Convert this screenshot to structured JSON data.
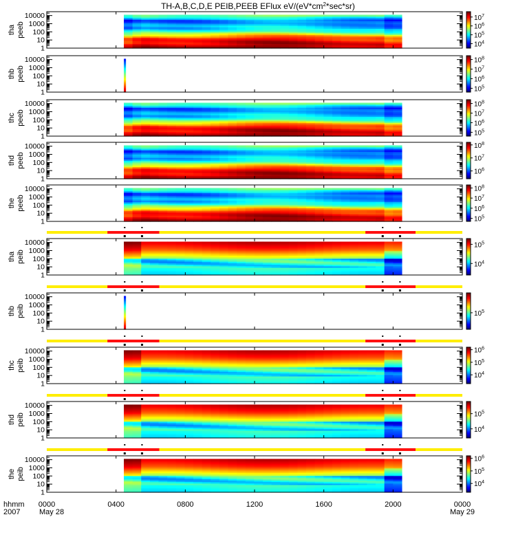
{
  "chart_data": {
    "type": "heatmap",
    "title": "TH-A,B,C,D,E PEIB,PEEB EFlux eV/(eV*cm",
    "title_sup": "2",
    "title_tail": "*sec*sr)",
    "x_range_hours": [
      0,
      24
    ],
    "x_ticks": [
      {
        "hour": 0,
        "label": "0000"
      },
      {
        "hour": 4,
        "label": "0400"
      },
      {
        "hour": 8,
        "label": "0800"
      },
      {
        "hour": 12,
        "label": "1200"
      },
      {
        "hour": 16,
        "label": "1600"
      },
      {
        "hour": 20,
        "label": "2000"
      },
      {
        "hour": 24,
        "label": "0000"
      }
    ],
    "x_footer": {
      "row1": "hhmm",
      "row2": "2007",
      "date_start": "May 28",
      "date_end": "May 29"
    },
    "ylim_eV": [
      1,
      30000
    ],
    "y_ticks": [
      "10000",
      "1000",
      "100",
      "10",
      "1"
    ],
    "panels": [
      {
        "label1": "tha",
        "label2": "peeb",
        "kind": "electron",
        "t_start": 4.45,
        "t_end": 20.5,
        "scale": [
          "7",
          "6",
          "5",
          "4"
        ],
        "scale_lo": 3.5,
        "scale_hi": 7.6
      },
      {
        "label1": "thb",
        "label2": "peeb",
        "kind": "spike",
        "t_start": 4.45,
        "t_end": 4.55,
        "scale": [
          "8",
          "7",
          "6",
          "5"
        ],
        "scale_lo": 4.6,
        "scale_hi": 8.4
      },
      {
        "label1": "thc",
        "label2": "peeb",
        "kind": "electron",
        "t_start": 4.45,
        "t_end": 20.5,
        "scale": [
          "8",
          "7",
          "6",
          "5"
        ],
        "scale_lo": 4.6,
        "scale_hi": 8.4
      },
      {
        "label1": "thd",
        "label2": "peeb",
        "kind": "electron",
        "t_start": 4.45,
        "t_end": 20.5,
        "scale": [
          "8",
          "7",
          "6"
        ],
        "scale_lo": 5.4,
        "scale_hi": 8.2
      },
      {
        "label1": "the",
        "label2": "peeb",
        "kind": "electron",
        "t_start": 4.45,
        "t_end": 20.5,
        "scale": [
          "8",
          "7",
          "6",
          "5"
        ],
        "scale_lo": 4.7,
        "scale_hi": 8.3
      },
      {
        "label1": "tha",
        "label2": "peib",
        "kind": "ion",
        "t_start": 4.45,
        "t_end": 20.5,
        "scale": [
          "5",
          "4"
        ],
        "scale_lo": 3.4,
        "scale_hi": 5.3
      },
      {
        "label1": "thb",
        "label2": "peib",
        "kind": "spike",
        "t_start": 4.45,
        "t_end": 4.55,
        "scale": [
          "5"
        ],
        "scale_lo": 4.5,
        "scale_hi": 5.6
      },
      {
        "label1": "thc",
        "label2": "peib",
        "kind": "ion",
        "t_start": 4.45,
        "t_end": 20.5,
        "scale": [
          "6",
          "5",
          "4"
        ],
        "scale_lo": 3.3,
        "scale_hi": 6.2
      },
      {
        "label1": "thd",
        "label2": "peib",
        "kind": "ion",
        "t_start": 4.45,
        "t_end": 20.5,
        "scale": [
          "5",
          "4"
        ],
        "scale_lo": 3.4,
        "scale_hi": 5.8
      },
      {
        "label1": "the",
        "label2": "peib",
        "kind": "ion",
        "t_start": 4.45,
        "t_end": 20.5,
        "scale": [
          "6",
          "5",
          "4"
        ],
        "scale_lo": 3.3,
        "scale_hi": 6.2
      }
    ],
    "mode_bars": [
      {
        "segments": [
          {
            "from": 0,
            "to": 3.5,
            "mode": "slow"
          },
          {
            "from": 3.5,
            "to": 6.5,
            "mode": "fast"
          },
          {
            "from": 6.5,
            "to": 18.4,
            "mode": "slow"
          },
          {
            "from": 18.4,
            "to": 21.3,
            "mode": "fast"
          },
          {
            "from": 21.3,
            "to": 24,
            "mode": "slow"
          }
        ],
        "marks": [
          4.5,
          5.5,
          19.4,
          20.4
        ]
      },
      {
        "segments": [
          {
            "from": 0,
            "to": 3.5,
            "mode": "slow"
          },
          {
            "from": 3.5,
            "to": 6.5,
            "mode": "fast"
          },
          {
            "from": 6.5,
            "to": 18.4,
            "mode": "slow"
          },
          {
            "from": 18.4,
            "to": 21.3,
            "mode": "fast"
          },
          {
            "from": 21.3,
            "to": 24,
            "mode": "slow"
          }
        ],
        "marks": [
          4.5,
          5.5,
          19.4,
          20.4
        ]
      },
      {
        "segments": [
          {
            "from": 0,
            "to": 3.5,
            "mode": "slow"
          },
          {
            "from": 3.5,
            "to": 6.5,
            "mode": "fast"
          },
          {
            "from": 6.5,
            "to": 18.4,
            "mode": "slow"
          },
          {
            "from": 18.4,
            "to": 21.3,
            "mode": "fast"
          },
          {
            "from": 21.3,
            "to": 24,
            "mode": "slow"
          }
        ],
        "marks": [
          4.5,
          5.5,
          19.4,
          20.4
        ]
      },
      {
        "segments": [
          {
            "from": 0,
            "to": 3.5,
            "mode": "slow"
          },
          {
            "from": 3.5,
            "to": 6.5,
            "mode": "fast"
          },
          {
            "from": 6.5,
            "to": 18.4,
            "mode": "slow"
          },
          {
            "from": 18.4,
            "to": 21.3,
            "mode": "fast"
          },
          {
            "from": 21.3,
            "to": 24,
            "mode": "slow"
          }
        ],
        "marks": [
          4.5,
          5.5,
          19.4,
          20.4
        ]
      },
      {
        "segments": [
          {
            "from": 0,
            "to": 3.5,
            "mode": "slow"
          },
          {
            "from": 3.5,
            "to": 6.5,
            "mode": "fast"
          },
          {
            "from": 6.5,
            "to": 18.4,
            "mode": "slow"
          },
          {
            "from": 18.4,
            "to": 21.3,
            "mode": "fast"
          },
          {
            "from": 21.3,
            "to": 24,
            "mode": "slow"
          }
        ],
        "marks": [
          4.5,
          5.5,
          19.4,
          20.4
        ]
      }
    ],
    "colors": {
      "slow": "#ffee00",
      "fast": "#ff1010",
      "mark": "#000000"
    }
  }
}
